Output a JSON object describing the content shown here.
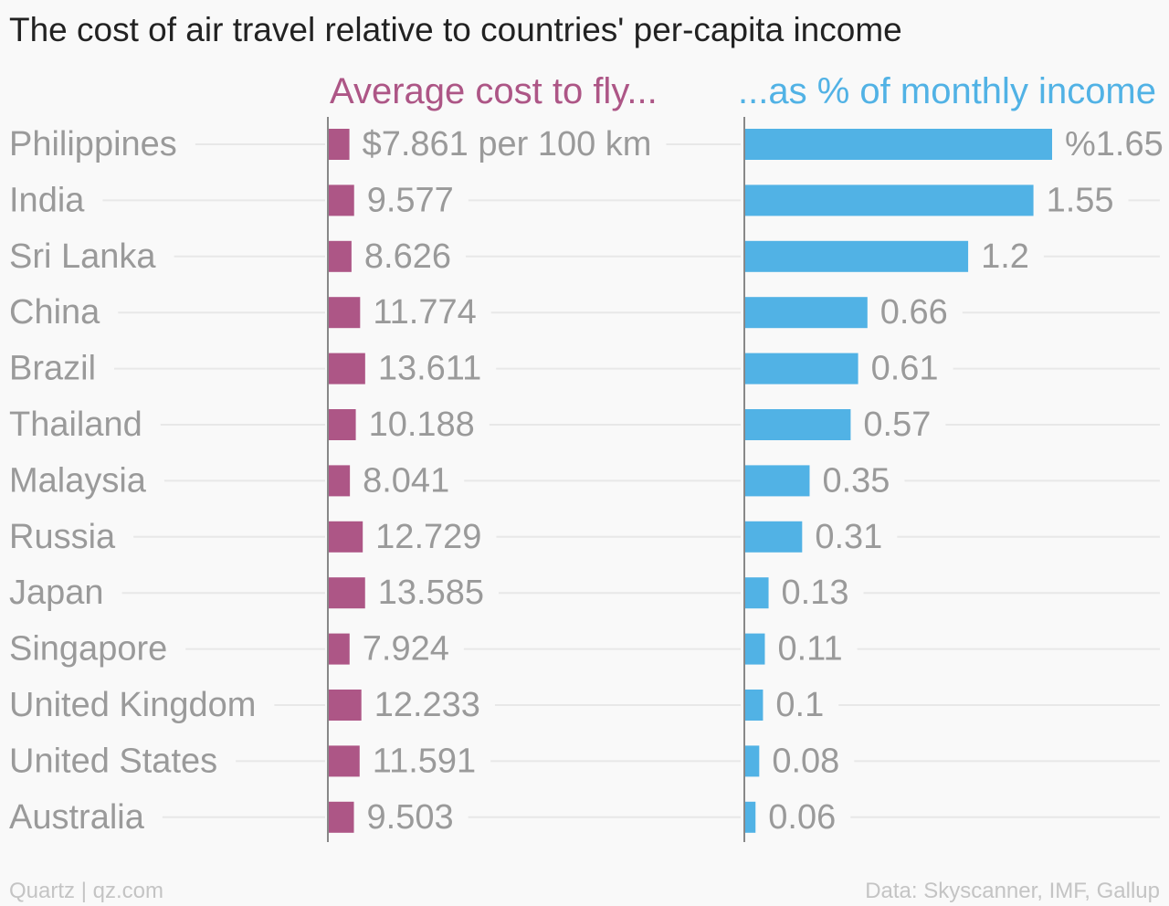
{
  "title": "The cost of air travel relative to countries' per-capita income",
  "footer": {
    "credit": "Quartz | qz.com",
    "source": "Data: Skyscanner, IMF, Gallup"
  },
  "colors": {
    "cost_bar": "#ad5686",
    "income_bar": "#51b2e5",
    "label_text": "#9a9a9a",
    "gridline": "#e8e8e8",
    "axis": "#888888"
  },
  "chart_data": [
    {
      "type": "bar",
      "orientation": "horizontal",
      "title": "Average cost to fly...",
      "categories": [
        "Philippines",
        "India",
        "Sri Lanka",
        "China",
        "Brazil",
        "Thailand",
        "Malaysia",
        "Russia",
        "Japan",
        "Singapore",
        "United Kingdom",
        "United States",
        "Australia"
      ],
      "values": [
        7.861,
        9.577,
        8.626,
        11.774,
        13.611,
        10.188,
        8.041,
        12.729,
        13.585,
        7.924,
        12.233,
        11.591,
        9.503
      ],
      "value_labels": [
        "$7.861 per 100 km",
        "9.577",
        "8.626",
        "11.774",
        "13.611",
        "10.188",
        "8.041",
        "12.729",
        "13.585",
        "7.924",
        "12.233",
        "11.591",
        "9.503"
      ],
      "xlim": [
        0,
        100
      ],
      "color": "#ad5686",
      "grid": true
    },
    {
      "type": "bar",
      "orientation": "horizontal",
      "title": "...as % of monthly income",
      "categories": [
        "Philippines",
        "India",
        "Sri Lanka",
        "China",
        "Brazil",
        "Thailand",
        "Malaysia",
        "Russia",
        "Japan",
        "Singapore",
        "United Kingdom",
        "United States",
        "Australia"
      ],
      "values": [
        1.65,
        1.55,
        1.2,
        0.66,
        0.61,
        0.57,
        0.35,
        0.31,
        0.13,
        0.11,
        0.1,
        0.08,
        0.06
      ],
      "value_labels": [
        "%1.65",
        "1.55",
        "1.2",
        "0.66",
        "0.61",
        "0.57",
        "0.35",
        "0.31",
        "0.13",
        "0.11",
        "0.1",
        "0.08",
        "0.06"
      ],
      "xlim": [
        0,
        1.65
      ],
      "color": "#51b2e5",
      "grid": true
    }
  ]
}
